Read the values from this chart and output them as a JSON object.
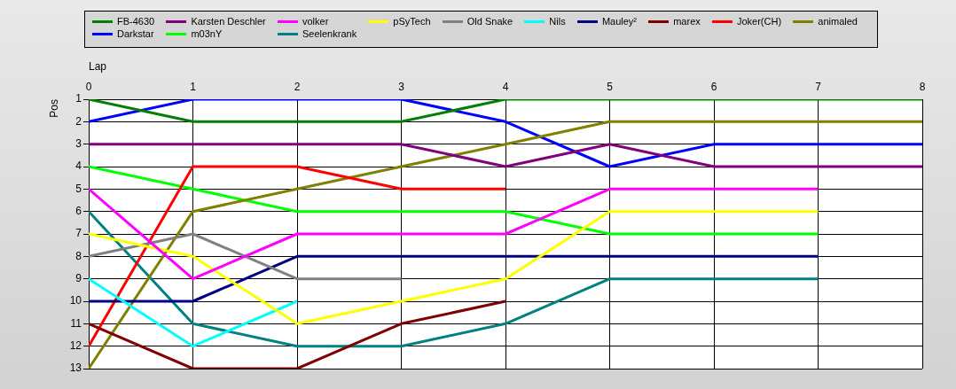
{
  "chart_data": {
    "type": "line",
    "xlabel": "Lap",
    "ylabel": "Pos",
    "x": [
      0,
      1,
      2,
      3,
      4,
      5,
      6,
      7,
      8
    ],
    "xlim": [
      0,
      8
    ],
    "xticks": [
      0,
      1,
      2,
      3,
      4,
      5,
      6,
      7,
      8
    ],
    "ylim": [
      13,
      1
    ],
    "yticks": [
      1,
      2,
      3,
      4,
      5,
      6,
      7,
      8,
      9,
      10,
      11,
      12,
      13
    ],
    "grid": true,
    "legend": "top",
    "marker": "none",
    "series": [
      {
        "name": "FB-4630",
        "color": "#008000",
        "values": [
          1,
          2,
          2,
          2,
          1,
          1,
          1,
          1,
          1
        ]
      },
      {
        "name": "Karsten Deschler",
        "color": "#800080",
        "values": [
          3,
          3,
          3,
          3,
          4,
          3,
          4,
          4,
          4
        ]
      },
      {
        "name": "volker",
        "color": "#ff00ff",
        "values": [
          5,
          9,
          7,
          7,
          7,
          5,
          5,
          5,
          null
        ]
      },
      {
        "name": "pSyTech",
        "color": "#ffff00",
        "values": [
          7,
          8,
          11,
          10,
          9,
          6,
          6,
          6,
          null
        ]
      },
      {
        "name": "Old Snake",
        "color": "#808080",
        "values": [
          8,
          7,
          9,
          9,
          null,
          null,
          null,
          null,
          null
        ]
      },
      {
        "name": "Nils",
        "color": "#00ffff",
        "values": [
          9,
          12,
          10,
          null,
          null,
          null,
          null,
          null,
          null
        ]
      },
      {
        "name": "Mauley²",
        "color": "#000080",
        "values": [
          10,
          10,
          8,
          8,
          8,
          8,
          8,
          8,
          null
        ]
      },
      {
        "name": "marex",
        "color": "#800000",
        "values": [
          11,
          13,
          13,
          11,
          10,
          null,
          null,
          null,
          null
        ]
      },
      {
        "name": "Joker(CH)",
        "color": "#ff0000",
        "values": [
          12,
          4,
          4,
          5,
          5,
          null,
          null,
          null,
          null
        ]
      },
      {
        "name": "animaled",
        "color": "#808000",
        "values": [
          13,
          6,
          5,
          4,
          3,
          2,
          2,
          2,
          2
        ]
      },
      {
        "name": "Darkstar",
        "color": "#0000ff",
        "values": [
          2,
          1,
          1,
          1,
          2,
          4,
          3,
          3,
          3
        ]
      },
      {
        "name": "m03nY",
        "color": "#00ff00",
        "values": [
          4,
          5,
          6,
          6,
          6,
          7,
          7,
          7,
          null
        ]
      },
      {
        "name": "Seelenkrank",
        "color": "#008080",
        "values": [
          6,
          11,
          12,
          12,
          11,
          9,
          9,
          9,
          null
        ]
      }
    ]
  }
}
